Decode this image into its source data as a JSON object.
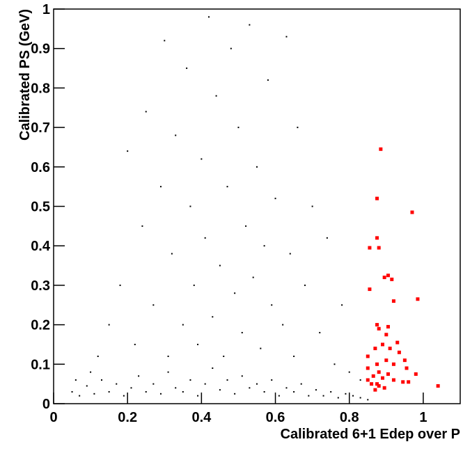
{
  "chart_data": {
    "type": "scatter",
    "x_label": "Calibrated 6+1 Edep over P",
    "y_label": "Calibrated PS (GeV)",
    "xlim": [
      0,
      1.1
    ],
    "ylim": [
      0,
      1
    ],
    "xticks": [
      0,
      0.2,
      0.4,
      0.6,
      0.8,
      1
    ],
    "yticks": [
      0,
      0.1,
      0.2,
      0.3,
      0.4,
      0.5,
      0.6,
      0.7,
      0.8,
      0.9,
      1
    ],
    "series": [
      {
        "color": "#000000",
        "x": [
          0.05,
          0.07,
          0.09,
          0.11,
          0.13,
          0.15,
          0.17,
          0.19,
          0.21,
          0.23,
          0.25,
          0.27,
          0.29,
          0.31,
          0.33,
          0.35,
          0.37,
          0.39,
          0.41,
          0.43,
          0.45,
          0.47,
          0.49,
          0.51,
          0.53,
          0.55,
          0.57,
          0.59,
          0.61,
          0.63,
          0.65,
          0.67,
          0.69,
          0.71,
          0.73,
          0.75,
          0.77,
          0.79,
          0.81,
          0.83,
          0.85,
          0.12,
          0.15,
          0.18,
          0.2,
          0.22,
          0.24,
          0.25,
          0.27,
          0.29,
          0.3,
          0.31,
          0.32,
          0.33,
          0.35,
          0.36,
          0.37,
          0.38,
          0.39,
          0.4,
          0.41,
          0.42,
          0.43,
          0.44,
          0.45,
          0.46,
          0.47,
          0.48,
          0.49,
          0.5,
          0.51,
          0.52,
          0.53,
          0.54,
          0.55,
          0.56,
          0.57,
          0.58,
          0.59,
          0.6,
          0.62,
          0.63,
          0.64,
          0.65,
          0.66,
          0.68,
          0.7,
          0.72,
          0.74,
          0.76,
          0.78,
          0.8,
          0.83,
          0.1,
          0.06
        ],
        "values": [
          0.03,
          0.02,
          0.045,
          0.025,
          0.06,
          0.03,
          0.05,
          0.02,
          0.04,
          0.07,
          0.03,
          0.05,
          0.025,
          0.08,
          0.04,
          0.03,
          0.06,
          0.02,
          0.05,
          0.09,
          0.035,
          0.06,
          0.025,
          0.07,
          0.04,
          0.05,
          0.03,
          0.06,
          0.02,
          0.04,
          0.03,
          0.05,
          0.02,
          0.035,
          0.02,
          0.03,
          0.015,
          0.025,
          0.02,
          0.015,
          0.01,
          0.12,
          0.2,
          0.3,
          0.64,
          0.15,
          0.45,
          0.74,
          0.25,
          0.55,
          0.92,
          0.12,
          0.38,
          0.68,
          0.2,
          0.85,
          0.5,
          0.3,
          0.15,
          0.62,
          0.42,
          0.98,
          0.22,
          0.78,
          0.35,
          0.12,
          0.55,
          0.9,
          0.28,
          0.7,
          0.18,
          0.45,
          0.96,
          0.32,
          0.6,
          0.14,
          0.4,
          0.82,
          0.25,
          0.52,
          0.2,
          0.93,
          0.38,
          0.12,
          0.7,
          0.3,
          0.5,
          0.18,
          0.42,
          0.1,
          0.25,
          0.08,
          0.06,
          0.08,
          0.06
        ]
      },
      {
        "color": "#ff0000",
        "x": [
          0.885,
          0.875,
          0.97,
          0.875,
          0.855,
          0.88,
          0.895,
          0.905,
          0.915,
          0.855,
          0.92,
          0.985,
          0.875,
          0.88,
          0.905,
          0.9,
          0.93,
          0.89,
          0.87,
          0.91,
          0.935,
          0.85,
          0.9,
          0.95,
          0.875,
          0.92,
          0.85,
          0.955,
          0.88,
          0.905,
          0.98,
          0.865,
          0.89,
          0.85,
          0.86,
          0.875,
          0.92,
          0.88,
          0.895,
          0.945,
          0.96,
          1.04,
          0.87
        ],
        "values": [
          0.645,
          0.52,
          0.485,
          0.42,
          0.395,
          0.395,
          0.32,
          0.325,
          0.315,
          0.29,
          0.26,
          0.265,
          0.2,
          0.19,
          0.195,
          0.175,
          0.155,
          0.15,
          0.14,
          0.14,
          0.13,
          0.12,
          0.11,
          0.11,
          0.1,
          0.1,
          0.09,
          0.09,
          0.08,
          0.075,
          0.075,
          0.07,
          0.065,
          0.06,
          0.05,
          0.05,
          0.06,
          0.045,
          0.04,
          0.055,
          0.055,
          0.045,
          0.035
        ]
      }
    ]
  }
}
